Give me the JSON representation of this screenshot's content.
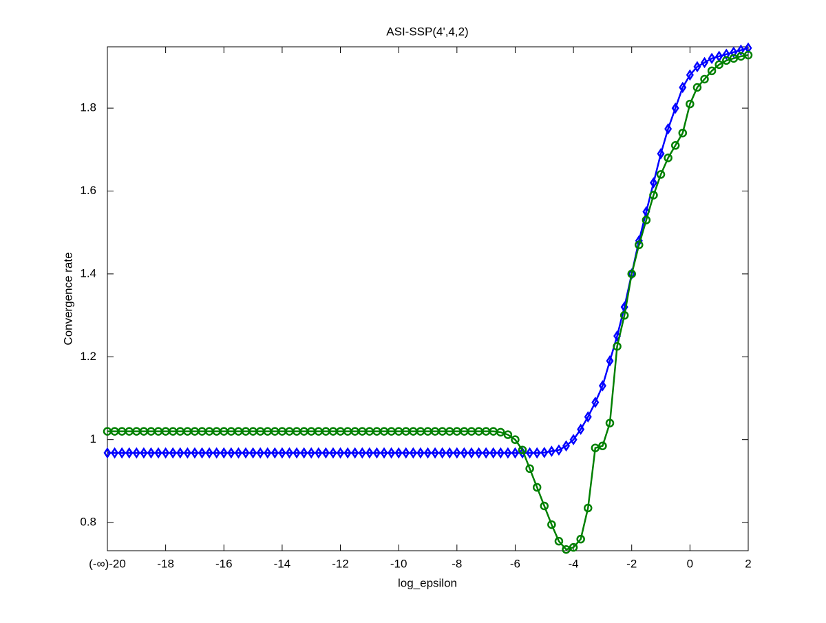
{
  "chart_data": {
    "type": "line",
    "title": "ASI-SSP(4',4,2)",
    "xlabel": "log_epsilon",
    "ylabel": "Convergence rate",
    "x": [
      -20,
      -19.75,
      -19.5,
      -19.25,
      -19,
      -18.75,
      -18.5,
      -18.25,
      -18,
      -17.75,
      -17.5,
      -17.25,
      -17,
      -16.75,
      -16.5,
      -16.25,
      -16,
      -15.75,
      -15.5,
      -15.25,
      -15,
      -14.75,
      -14.5,
      -14.25,
      -14,
      -13.75,
      -13.5,
      -13.25,
      -13,
      -12.75,
      -12.5,
      -12.25,
      -12,
      -11.75,
      -11.5,
      -11.25,
      -11,
      -10.75,
      -10.5,
      -10.25,
      -10,
      -9.75,
      -9.5,
      -9.25,
      -9,
      -8.75,
      -8.5,
      -8.25,
      -8,
      -7.75,
      -7.5,
      -7.25,
      -7,
      -6.75,
      -6.5,
      -6.25,
      -6,
      -5.75,
      -5.5,
      -5.25,
      -5,
      -4.75,
      -4.5,
      -4.25,
      -4,
      -3.75,
      -3.5,
      -3.25,
      -3,
      -2.75,
      -2.5,
      -2.25,
      -2,
      -1.75,
      -1.5,
      -1.25,
      -1,
      -0.75,
      -0.5,
      -0.25,
      0,
      0.25,
      0.5,
      0.75,
      1,
      1.25,
      1.5,
      1.75,
      2
    ],
    "series": [
      {
        "color": "#0000ff",
        "marker": "diamond",
        "values": [
          0.968,
          0.968,
          0.968,
          0.968,
          0.968,
          0.968,
          0.968,
          0.968,
          0.968,
          0.968,
          0.968,
          0.968,
          0.968,
          0.968,
          0.968,
          0.968,
          0.968,
          0.968,
          0.968,
          0.968,
          0.968,
          0.968,
          0.968,
          0.968,
          0.968,
          0.968,
          0.968,
          0.968,
          0.968,
          0.968,
          0.968,
          0.968,
          0.968,
          0.968,
          0.968,
          0.968,
          0.968,
          0.968,
          0.968,
          0.968,
          0.968,
          0.968,
          0.968,
          0.968,
          0.968,
          0.968,
          0.968,
          0.968,
          0.968,
          0.968,
          0.968,
          0.968,
          0.968,
          0.968,
          0.968,
          0.968,
          0.968,
          0.968,
          0.968,
          0.968,
          0.969,
          0.972,
          0.975,
          0.985,
          1.0,
          1.025,
          1.055,
          1.09,
          1.13,
          1.19,
          1.25,
          1.32,
          1.4,
          1.48,
          1.55,
          1.62,
          1.69,
          1.75,
          1.8,
          1.85,
          1.88,
          1.9,
          1.91,
          1.92,
          1.925,
          1.93,
          1.935,
          1.94,
          1.945
        ]
      },
      {
        "color": "#008000",
        "marker": "circle",
        "values": [
          1.02,
          1.02,
          1.02,
          1.02,
          1.02,
          1.02,
          1.02,
          1.02,
          1.02,
          1.02,
          1.02,
          1.02,
          1.02,
          1.02,
          1.02,
          1.02,
          1.02,
          1.02,
          1.02,
          1.02,
          1.02,
          1.02,
          1.02,
          1.02,
          1.02,
          1.02,
          1.02,
          1.02,
          1.02,
          1.02,
          1.02,
          1.02,
          1.02,
          1.02,
          1.02,
          1.02,
          1.02,
          1.02,
          1.02,
          1.02,
          1.02,
          1.02,
          1.02,
          1.02,
          1.02,
          1.02,
          1.02,
          1.02,
          1.02,
          1.02,
          1.02,
          1.02,
          1.02,
          1.02,
          1.018,
          1.012,
          1.0,
          0.975,
          0.93,
          0.885,
          0.84,
          0.795,
          0.755,
          0.735,
          0.74,
          0.76,
          0.835,
          0.98,
          0.985,
          1.04,
          1.225,
          1.3,
          1.4,
          1.47,
          1.53,
          1.59,
          1.64,
          1.68,
          1.71,
          1.74,
          1.81,
          1.85,
          1.87,
          1.89,
          1.905,
          1.915,
          1.92,
          1.925,
          1.928
        ]
      }
    ],
    "xlim": [
      -20,
      2
    ],
    "ylim": [
      0.732,
      1.948
    ],
    "xticks": [
      {
        "value": -20,
        "label": "(-∞)-20"
      },
      -18,
      -16,
      -14,
      -12,
      -10,
      -8,
      -6,
      -4,
      -2,
      0,
      2
    ],
    "yticks": [
      0.8,
      1,
      1.2,
      1.4,
      1.6,
      1.8
    ]
  }
}
